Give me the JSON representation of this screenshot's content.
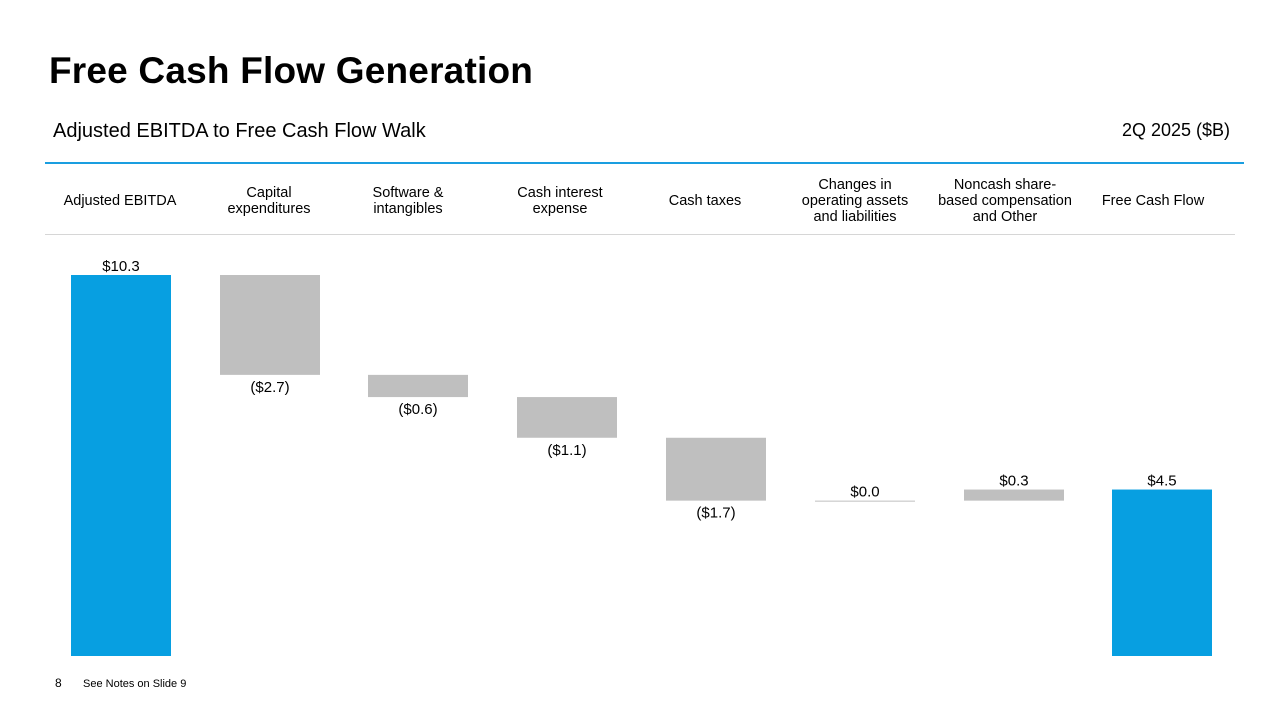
{
  "slide": {
    "title": "Free Cash Flow Generation",
    "subtitle": "Adjusted EBITDA to Free Cash Flow Walk",
    "period": "2Q 2025 ($B)",
    "page_number": "8",
    "footer_note": "See Notes on Slide 9"
  },
  "colors": {
    "total": "#079fe1",
    "change": "#bfbfbf",
    "rule": "#1a9ee0"
  },
  "chart_data": {
    "type": "bar",
    "subtype": "waterfall",
    "categories": [
      "Adjusted EBITDA",
      "Capital\nexpenditures",
      "Software &\nintangibles",
      "Cash interest\nexpense",
      "Cash taxes",
      "Changes in\noperating assets\nand liabilities",
      "Noncash share-\nbased compensation\nand Other",
      "Free Cash Flow"
    ],
    "values": [
      10.3,
      -2.7,
      -0.6,
      -1.1,
      -1.7,
      0.0,
      0.3,
      4.5
    ],
    "bar_kind": [
      "total",
      "change",
      "change",
      "change",
      "change",
      "change",
      "change",
      "total"
    ],
    "data_labels": [
      "$10.3",
      "($2.7)",
      "($0.6)",
      "($1.1)",
      "($1.7)",
      "$0.0",
      "$0.3",
      "$4.5"
    ],
    "ylim": [
      0,
      10.3
    ],
    "grid": false,
    "legend": "none"
  }
}
